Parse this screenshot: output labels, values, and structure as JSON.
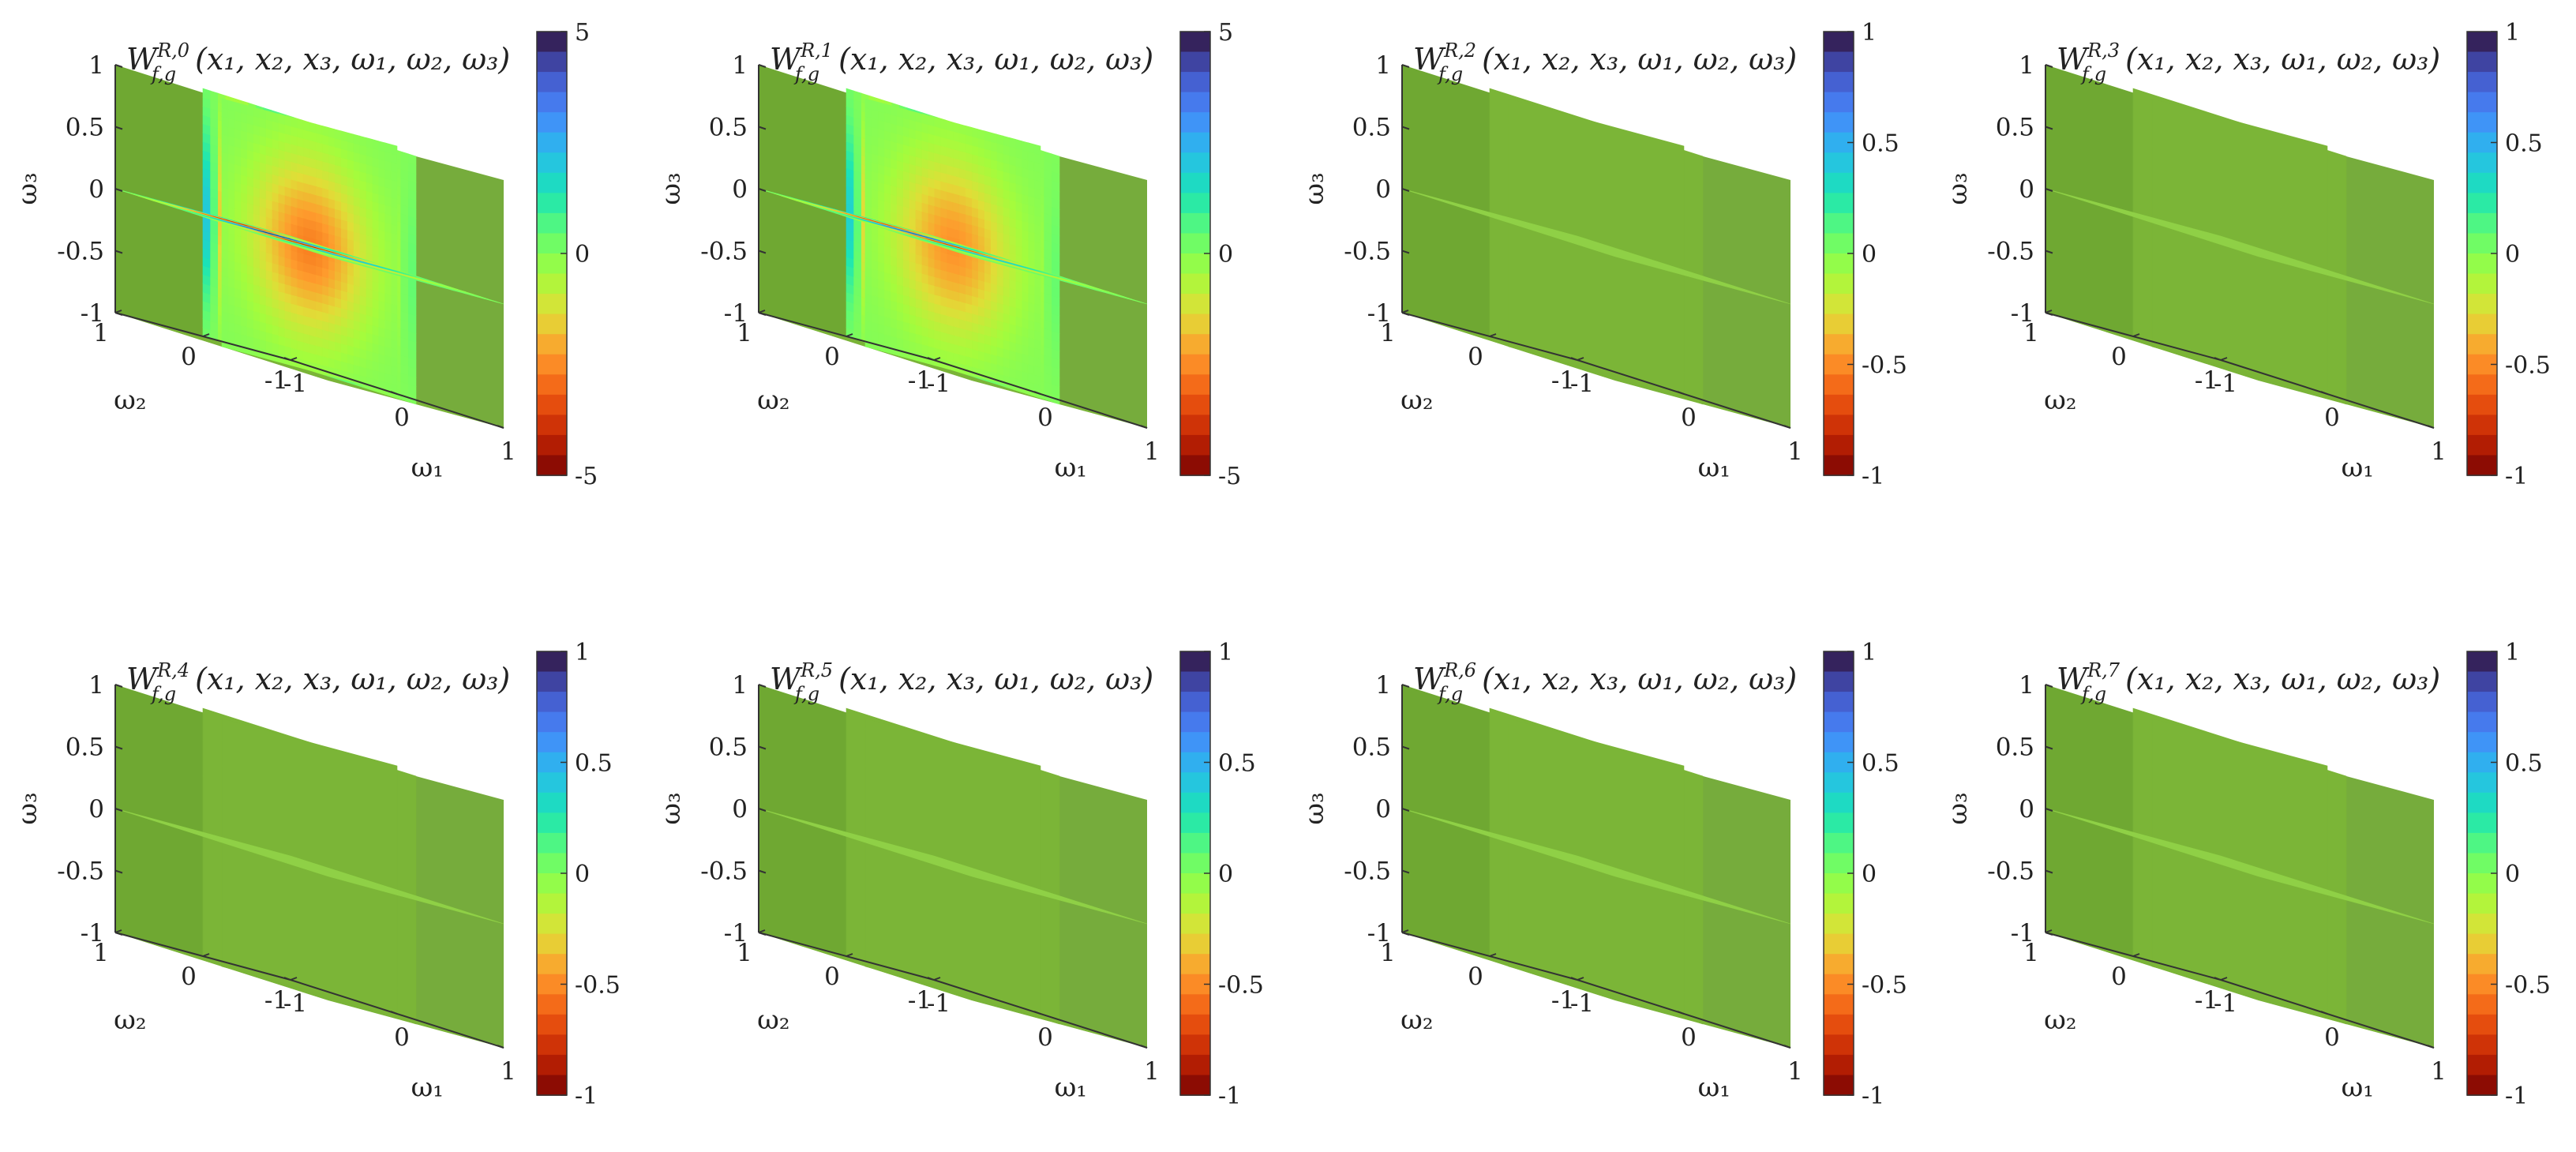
{
  "figure": {
    "panel_count": 8
  },
  "chart_data": [
    {
      "type": "heatmap",
      "title": "W_{f,g}^{R,0}(x_1,x_2,x_3,ω_1,ω_2,ω_3)",
      "title_main": "W",
      "title_sub": "f,g",
      "title_sup": "R,0",
      "title_args": "(x₁, x₂, x₃, ω₁, ω₂, ω₃)",
      "xlabel": "ω₁",
      "ylabel": "ω₂",
      "zlabel": "ω₃",
      "xlim": [
        -1,
        1
      ],
      "ylim": [
        -1,
        1
      ],
      "zlim": [
        -1,
        1
      ],
      "x_ticks": [
        "-1",
        "0",
        "1"
      ],
      "y_ticks": [
        "-1",
        "0",
        "1"
      ],
      "z_ticks": [
        "-1",
        "-0.5",
        "0",
        "0.5",
        "1"
      ],
      "colorbar_range": [
        -5,
        5
      ],
      "colorbar_ticks": [
        "-5",
        "0",
        "5"
      ],
      "colormap": "turbo-reversed (dark red = min, green = 0, dark navy = max)",
      "slices": "orthogonal planes at ω₁=0, ω₂=0, ω₃=0 plus back faces",
      "pattern": "oscillating fringes, amplitude up to about ±5"
    },
    {
      "type": "heatmap",
      "title": "W_{f,g}^{R,1}(x_1,x_2,x_3,ω_1,ω_2,ω_3)",
      "title_main": "W",
      "title_sub": "f,g",
      "title_sup": "R,1",
      "title_args": "(x₁, x₂, x₃, ω₁, ω₂, ω₃)",
      "xlabel": "ω₁",
      "ylabel": "ω₂",
      "zlabel": "ω₃",
      "xlim": [
        -1,
        1
      ],
      "ylim": [
        -1,
        1
      ],
      "zlim": [
        -1,
        1
      ],
      "x_ticks": [
        "-1",
        "0",
        "1"
      ],
      "y_ticks": [
        "-1",
        "0",
        "1"
      ],
      "z_ticks": [
        "-1",
        "-0.5",
        "0",
        "0.5",
        "1"
      ],
      "colorbar_range": [
        -5,
        5
      ],
      "colorbar_ticks": [
        "-5",
        "0",
        "5"
      ],
      "colormap": "turbo-reversed (dark red = min, green = 0, dark navy = max)",
      "slices": "orthogonal planes at ω₁=0, ω₂=0, ω₃=0 plus back faces",
      "pattern": "oscillating fringes, amplitude up to about ±5"
    },
    {
      "type": "heatmap",
      "title": "W_{f,g}^{R,2}(x_1,x_2,x_3,ω_1,ω_2,ω_3)",
      "title_main": "W",
      "title_sub": "f,g",
      "title_sup": "R,2",
      "title_args": "(x₁, x₂, x₃, ω₁, ω₂, ω₃)",
      "xlabel": "ω₁",
      "ylabel": "ω₂",
      "zlabel": "ω₃",
      "xlim": [
        -1,
        1
      ],
      "ylim": [
        -1,
        1
      ],
      "zlim": [
        -1,
        1
      ],
      "x_ticks": [
        "-1",
        "0",
        "1"
      ],
      "y_ticks": [
        "-1",
        "0",
        "1"
      ],
      "z_ticks": [
        "-1",
        "-0.5",
        "0",
        "0.5",
        "1"
      ],
      "colorbar_range": [
        -1,
        1
      ],
      "colorbar_ticks": [
        "-1",
        "-0.5",
        "0",
        "0.5",
        "1"
      ],
      "colormap": "turbo-reversed (dark red = min, green = 0, dark navy = max)",
      "slices": "orthogonal planes at ω₁=0, ω₂=0, ω₃=0 plus back faces",
      "pattern": "uniform, value 0 everywhere"
    },
    {
      "type": "heatmap",
      "title": "W_{f,g}^{R,3}(x_1,x_2,x_3,ω_1,ω_2,ω_3)",
      "title_main": "W",
      "title_sub": "f,g",
      "title_sup": "R,3",
      "title_args": "(x₁, x₂, x₃, ω₁, ω₂, ω₃)",
      "xlabel": "ω₁",
      "ylabel": "ω₂",
      "zlabel": "ω₃",
      "xlim": [
        -1,
        1
      ],
      "ylim": [
        -1,
        1
      ],
      "zlim": [
        -1,
        1
      ],
      "x_ticks": [
        "-1",
        "0",
        "1"
      ],
      "y_ticks": [
        "-1",
        "0",
        "1"
      ],
      "z_ticks": [
        "-1",
        "-0.5",
        "0",
        "0.5",
        "1"
      ],
      "colorbar_range": [
        -1,
        1
      ],
      "colorbar_ticks": [
        "-1",
        "-0.5",
        "0",
        "0.5",
        "1"
      ],
      "colormap": "turbo-reversed (dark red = min, green = 0, dark navy = max)",
      "slices": "orthogonal planes at ω₁=0, ω₂=0, ω₃=0 plus back faces",
      "pattern": "uniform, value 0 everywhere"
    },
    {
      "type": "heatmap",
      "title": "W_{f,g}^{R,4}(x_1,x_2,x_3,ω_1,ω_2,ω_3)",
      "title_main": "W",
      "title_sub": "f,g",
      "title_sup": "R,4",
      "title_args": "(x₁, x₂, x₃, ω₁, ω₂, ω₃)",
      "xlabel": "ω₁",
      "ylabel": "ω₂",
      "zlabel": "ω₃",
      "xlim": [
        -1,
        1
      ],
      "ylim": [
        -1,
        1
      ],
      "zlim": [
        -1,
        1
      ],
      "x_ticks": [
        "-1",
        "0",
        "1"
      ],
      "y_ticks": [
        "-1",
        "0",
        "1"
      ],
      "z_ticks": [
        "-1",
        "-0.5",
        "0",
        "0.5",
        "1"
      ],
      "colorbar_range": [
        -1,
        1
      ],
      "colorbar_ticks": [
        "-1",
        "-0.5",
        "0",
        "0.5",
        "1"
      ],
      "colormap": "turbo-reversed (dark red = min, green = 0, dark navy = max)",
      "slices": "orthogonal planes at ω₁=0, ω₂=0, ω₃=0 plus back faces",
      "pattern": "uniform, value 0 everywhere"
    },
    {
      "type": "heatmap",
      "title": "W_{f,g}^{R,5}(x_1,x_2,x_3,ω_1,ω_2,ω_3)",
      "title_main": "W",
      "title_sub": "f,g",
      "title_sup": "R,5",
      "title_args": "(x₁, x₂, x₃, ω₁, ω₂, ω₃)",
      "xlabel": "ω₁",
      "ylabel": "ω₂",
      "zlabel": "ω₃",
      "xlim": [
        -1,
        1
      ],
      "ylim": [
        -1,
        1
      ],
      "zlim": [
        -1,
        1
      ],
      "x_ticks": [
        "-1",
        "0",
        "1"
      ],
      "y_ticks": [
        "-1",
        "0",
        "1"
      ],
      "z_ticks": [
        "-1",
        "-0.5",
        "0",
        "0.5",
        "1"
      ],
      "colorbar_range": [
        -1,
        1
      ],
      "colorbar_ticks": [
        "-1",
        "-0.5",
        "0",
        "0.5",
        "1"
      ],
      "colormap": "turbo-reversed (dark red = min, green = 0, dark navy = max)",
      "slices": "orthogonal planes at ω₁=0, ω₂=0, ω₃=0 plus back faces",
      "pattern": "uniform, value 0 everywhere"
    },
    {
      "type": "heatmap",
      "title": "W_{f,g}^{R,6}(x_1,x_2,x_3,ω_1,ω_2,ω_3)",
      "title_main": "W",
      "title_sub": "f,g",
      "title_sup": "R,6",
      "title_args": "(x₁, x₂, x₃, ω₁, ω₂, ω₃)",
      "xlabel": "ω₁",
      "ylabel": "ω₂",
      "zlabel": "ω₃",
      "xlim": [
        -1,
        1
      ],
      "ylim": [
        -1,
        1
      ],
      "zlim": [
        -1,
        1
      ],
      "x_ticks": [
        "-1",
        "0",
        "1"
      ],
      "y_ticks": [
        "-1",
        "0",
        "1"
      ],
      "z_ticks": [
        "-1",
        "-0.5",
        "0",
        "0.5",
        "1"
      ],
      "colorbar_range": [
        -1,
        1
      ],
      "colorbar_ticks": [
        "-1",
        "-0.5",
        "0",
        "0.5",
        "1"
      ],
      "colormap": "turbo-reversed (dark red = min, green = 0, dark navy = max)",
      "slices": "orthogonal planes at ω₁=0, ω₂=0, ω₃=0 plus back faces",
      "pattern": "uniform, value 0 everywhere"
    },
    {
      "type": "heatmap",
      "title": "W_{f,g}^{R,7}(x_1,x_2,x_3,ω_1,ω_2,ω_3)",
      "title_main": "W",
      "title_sub": "f,g",
      "title_sup": "R,7",
      "title_args": "(x₁, x₂, x₃, ω₁, ω₂, ω₃)",
      "xlabel": "ω₁",
      "ylabel": "ω₂",
      "zlabel": "ω₃",
      "xlim": [
        -1,
        1
      ],
      "ylim": [
        -1,
        1
      ],
      "zlim": [
        -1,
        1
      ],
      "x_ticks": [
        "-1",
        "0",
        "1"
      ],
      "y_ticks": [
        "-1",
        "0",
        "1"
      ],
      "z_ticks": [
        "-1",
        "-0.5",
        "0",
        "0.5",
        "1"
      ],
      "colorbar_range": [
        -1,
        1
      ],
      "colorbar_ticks": [
        "-1",
        "-0.5",
        "0",
        "0.5",
        "1"
      ],
      "colormap": "turbo-reversed (dark red = min, green = 0, dark navy = max)",
      "slices": "orthogonal planes at ω₁=0, ω₂=0, ω₃=0 plus back faces",
      "pattern": "uniform, value 0 everywhere"
    }
  ],
  "colors": {
    "zero_green": "#7bb537",
    "face_green": "#6fa832",
    "slice_green": "#8fd046",
    "axis": "#333333",
    "colormap_stops": [
      "#7a0403",
      "#c42503",
      "#f05b12",
      "#fe9b2d",
      "#e1dd37",
      "#a4fc3c",
      "#5ffc73",
      "#1ae4b6",
      "#28bceb",
      "#4686fb",
      "#4454c4",
      "#30123b"
    ]
  }
}
